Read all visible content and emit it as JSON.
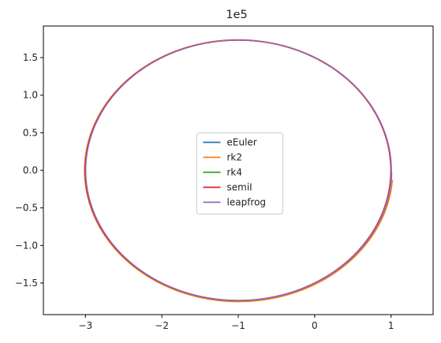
{
  "chart_data": {
    "type": "line",
    "title": "1e5",
    "xlabel": "",
    "ylabel": "",
    "xlim": [
      -3.55,
      1.55
    ],
    "ylim": [
      -1.92,
      1.92
    ],
    "xticks": [
      -3,
      -2,
      -1,
      0,
      1
    ],
    "xtick_labels": [
      "−3",
      "−2",
      "−1",
      "0",
      "1"
    ],
    "yticks": [
      -1.5,
      -1.0,
      -0.5,
      0.0,
      0.5,
      1.0,
      1.5
    ],
    "ytick_labels": [
      "−1.5",
      "−1.0",
      "−0.5",
      "0.0",
      "0.5",
      "1.0",
      "1.5"
    ],
    "grid": false,
    "legend_position": "center",
    "orbit": {
      "center": [
        -1.0,
        0.0
      ],
      "semi_major_x": 2.0,
      "semi_minor_y": 1.732,
      "start_point": [
        1.0,
        0.0
      ]
    },
    "series": [
      {
        "name": "eEuler",
        "color": "#1f77b4",
        "end_angle_deg": 359.3,
        "growth": 0.004,
        "x_offset": 0.0
      },
      {
        "name": "rk2",
        "color": "#ff7f0e",
        "end_angle_deg": 355.8,
        "growth": 0.012,
        "x_offset": 0.0
      },
      {
        "name": "rk4",
        "color": "#2ca02c",
        "end_angle_deg": 359.6,
        "growth": 0.002,
        "x_offset": 0.0
      },
      {
        "name": "semiI",
        "color": "#d62728",
        "end_angle_deg": 359.9,
        "growth": 0.0,
        "x_offset": -0.004
      },
      {
        "name": "leapfrog",
        "color": "#9467bd",
        "end_angle_deg": 360.0,
        "growth": 0.0,
        "x_offset": 0.004
      }
    ]
  }
}
